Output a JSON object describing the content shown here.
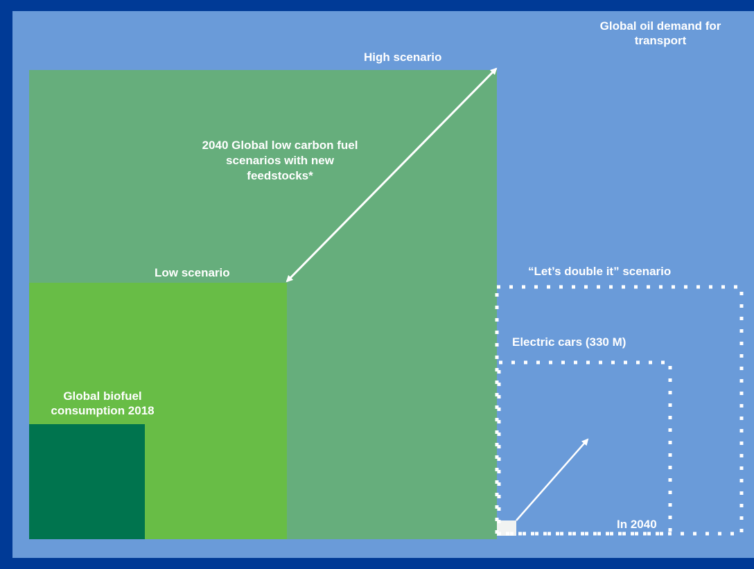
{
  "colors": {
    "frame": "#003a96",
    "background": "#6a9bd9",
    "high_scenario": "#66ae7c",
    "low_scenario": "#68bd46",
    "biofuel_2018": "#00744e",
    "arrows_and_dots": "#ffffff"
  },
  "labels": {
    "oil_demand": "Global oil demand for transport",
    "high_scenario": "High scenario",
    "low_carbon_scenarios": "2040 Global low carbon fuel scenarios with new feedstocks*",
    "low_scenario": "Low scenario",
    "biofuel_2018": "Global biofuel consumption 2018",
    "double_scenario": "“Let’s double it” scenario",
    "electric_cars": "Electric cars (330 M)",
    "in_2040": "In 2040"
  }
}
